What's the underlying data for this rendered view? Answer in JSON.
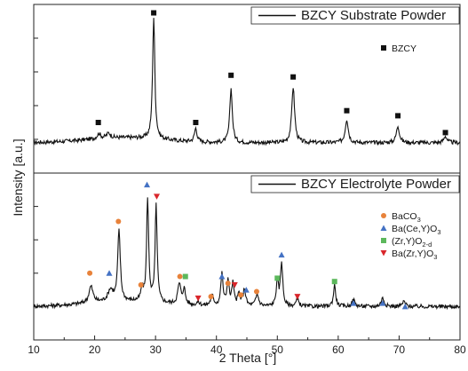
{
  "chart_data": {
    "type": "line",
    "xlabel": "2 Theta [°]",
    "ylabel": "Intensity [a.u.]",
    "xlim": [
      10,
      80
    ],
    "xticks": [
      10,
      20,
      30,
      40,
      50,
      60,
      70,
      80
    ],
    "grid": false,
    "panels": [
      {
        "id": "top",
        "legend_text": "BZCY Substrate Powder",
        "legend_position": "top-right",
        "marker_legend": [
          {
            "label": "BZCY",
            "shape": "square",
            "color": "#111111"
          }
        ],
        "baseline": 0.18,
        "noise": 0.012,
        "peaks": [
          {
            "x": 20.7,
            "h": 0.03,
            "w": 0.35
          },
          {
            "x": 22.3,
            "h": 0.03,
            "w": 0.4
          },
          {
            "x": 29.7,
            "h": 0.72,
            "w": 0.22
          },
          {
            "x": 36.6,
            "h": 0.08,
            "w": 0.25
          },
          {
            "x": 42.4,
            "h": 0.32,
            "w": 0.25
          },
          {
            "x": 52.6,
            "h": 0.33,
            "w": 0.28
          },
          {
            "x": 61.4,
            "h": 0.14,
            "w": 0.3
          },
          {
            "x": 69.8,
            "h": 0.1,
            "w": 0.3
          },
          {
            "x": 77.6,
            "h": 0.04,
            "w": 0.3
          }
        ],
        "markers": [
          {
            "x": 20.6,
            "y": 0.3,
            "shape": "square",
            "color": "#111111"
          },
          {
            "x": 29.7,
            "y": 0.95,
            "shape": "square",
            "color": "#111111"
          },
          {
            "x": 36.6,
            "y": 0.3,
            "shape": "square",
            "color": "#111111"
          },
          {
            "x": 42.4,
            "y": 0.58,
            "shape": "square",
            "color": "#111111"
          },
          {
            "x": 52.6,
            "y": 0.57,
            "shape": "square",
            "color": "#111111"
          },
          {
            "x": 61.4,
            "y": 0.37,
            "shape": "square",
            "color": "#111111"
          },
          {
            "x": 69.8,
            "y": 0.34,
            "shape": "square",
            "color": "#111111"
          },
          {
            "x": 77.6,
            "y": 0.24,
            "shape": "square",
            "color": "#111111"
          }
        ]
      },
      {
        "id": "bottom",
        "legend_text": "BZCY Electrolyte Powder",
        "legend_position": "top-right",
        "marker_legend": [
          {
            "label": "BaCO",
            "sub": "3",
            "shape": "circle",
            "color": "#e8823a"
          },
          {
            "label": "Ba(Ce,Y)O",
            "sub": "3",
            "shape": "triangle-up",
            "color": "#4472c4"
          },
          {
            "label": "(Zr,Y)O",
            "sub": "2-d",
            "shape": "square",
            "color": "#5cb85c"
          },
          {
            "label": "Ba(Zr,Y)O",
            "sub": "3",
            "shape": "triangle-down",
            "color": "#d9262b"
          }
        ],
        "baseline": 0.2,
        "noise": 0.012,
        "peaks": [
          {
            "x": 19.4,
            "h": 0.1,
            "w": 0.4
          },
          {
            "x": 22.6,
            "h": 0.07,
            "w": 0.5
          },
          {
            "x": 24.0,
            "h": 0.42,
            "w": 0.25
          },
          {
            "x": 27.8,
            "h": 0.07,
            "w": 0.25
          },
          {
            "x": 28.7,
            "h": 0.62,
            "w": 0.2
          },
          {
            "x": 30.1,
            "h": 0.58,
            "w": 0.2
          },
          {
            "x": 33.9,
            "h": 0.12,
            "w": 0.3
          },
          {
            "x": 34.7,
            "h": 0.09,
            "w": 0.25
          },
          {
            "x": 37.0,
            "h": 0.02,
            "w": 0.3
          },
          {
            "x": 39.3,
            "h": 0.06,
            "w": 0.3
          },
          {
            "x": 40.9,
            "h": 0.19,
            "w": 0.22
          },
          {
            "x": 41.9,
            "h": 0.15,
            "w": 0.22
          },
          {
            "x": 42.7,
            "h": 0.13,
            "w": 0.22
          },
          {
            "x": 43.7,
            "h": 0.07,
            "w": 0.25
          },
          {
            "x": 44.6,
            "h": 0.1,
            "w": 0.25
          },
          {
            "x": 46.7,
            "h": 0.07,
            "w": 0.3
          },
          {
            "x": 50.0,
            "h": 0.15,
            "w": 0.22
          },
          {
            "x": 50.7,
            "h": 0.26,
            "w": 0.22
          },
          {
            "x": 53.3,
            "h": 0.04,
            "w": 0.3
          },
          {
            "x": 59.4,
            "h": 0.13,
            "w": 0.22
          },
          {
            "x": 62.5,
            "h": 0.04,
            "w": 0.3
          },
          {
            "x": 67.3,
            "h": 0.05,
            "w": 0.3
          },
          {
            "x": 70.8,
            "h": 0.03,
            "w": 0.3
          }
        ],
        "markers": [
          {
            "x": 19.2,
            "y": 0.4,
            "shape": "circle",
            "color": "#e8823a"
          },
          {
            "x": 22.4,
            "y": 0.4,
            "shape": "triangle-up",
            "color": "#4472c4"
          },
          {
            "x": 23.9,
            "y": 0.71,
            "shape": "circle",
            "color": "#e8823a"
          },
          {
            "x": 27.6,
            "y": 0.33,
            "shape": "circle",
            "color": "#e8823a"
          },
          {
            "x": 28.6,
            "y": 0.93,
            "shape": "triangle-up",
            "color": "#4472c4"
          },
          {
            "x": 30.2,
            "y": 0.86,
            "shape": "triangle-down",
            "color": "#d9262b"
          },
          {
            "x": 34.0,
            "y": 0.38,
            "shape": "circle",
            "color": "#e8823a"
          },
          {
            "x": 34.9,
            "y": 0.38,
            "shape": "square",
            "color": "#5cb85c"
          },
          {
            "x": 37.0,
            "y": 0.25,
            "shape": "triangle-down",
            "color": "#d9262b"
          },
          {
            "x": 39.1,
            "y": 0.26,
            "shape": "circle",
            "color": "#e8823a"
          },
          {
            "x": 40.9,
            "y": 0.38,
            "shape": "triangle-up",
            "color": "#4472c4"
          },
          {
            "x": 41.9,
            "y": 0.34,
            "shape": "circle",
            "color": "#e8823a"
          },
          {
            "x": 43.0,
            "y": 0.33,
            "shape": "triangle-down",
            "color": "#d9262b"
          },
          {
            "x": 44.0,
            "y": 0.27,
            "shape": "circle",
            "color": "#e8823a"
          },
          {
            "x": 44.9,
            "y": 0.3,
            "shape": "triangle-up",
            "color": "#4472c4"
          },
          {
            "x": 46.6,
            "y": 0.29,
            "shape": "circle",
            "color": "#e8823a"
          },
          {
            "x": 50.0,
            "y": 0.37,
            "shape": "square",
            "color": "#5cb85c"
          },
          {
            "x": 50.7,
            "y": 0.51,
            "shape": "triangle-up",
            "color": "#4472c4"
          },
          {
            "x": 53.3,
            "y": 0.26,
            "shape": "triangle-down",
            "color": "#d9262b"
          },
          {
            "x": 59.4,
            "y": 0.35,
            "shape": "square",
            "color": "#5cb85c"
          },
          {
            "x": 62.5,
            "y": 0.22,
            "shape": "triangle-up",
            "color": "#4472c4"
          },
          {
            "x": 67.3,
            "y": 0.22,
            "shape": "triangle-up",
            "color": "#4472c4"
          },
          {
            "x": 71.0,
            "y": 0.2,
            "shape": "triangle-up",
            "color": "#4472c4"
          }
        ]
      }
    ]
  }
}
